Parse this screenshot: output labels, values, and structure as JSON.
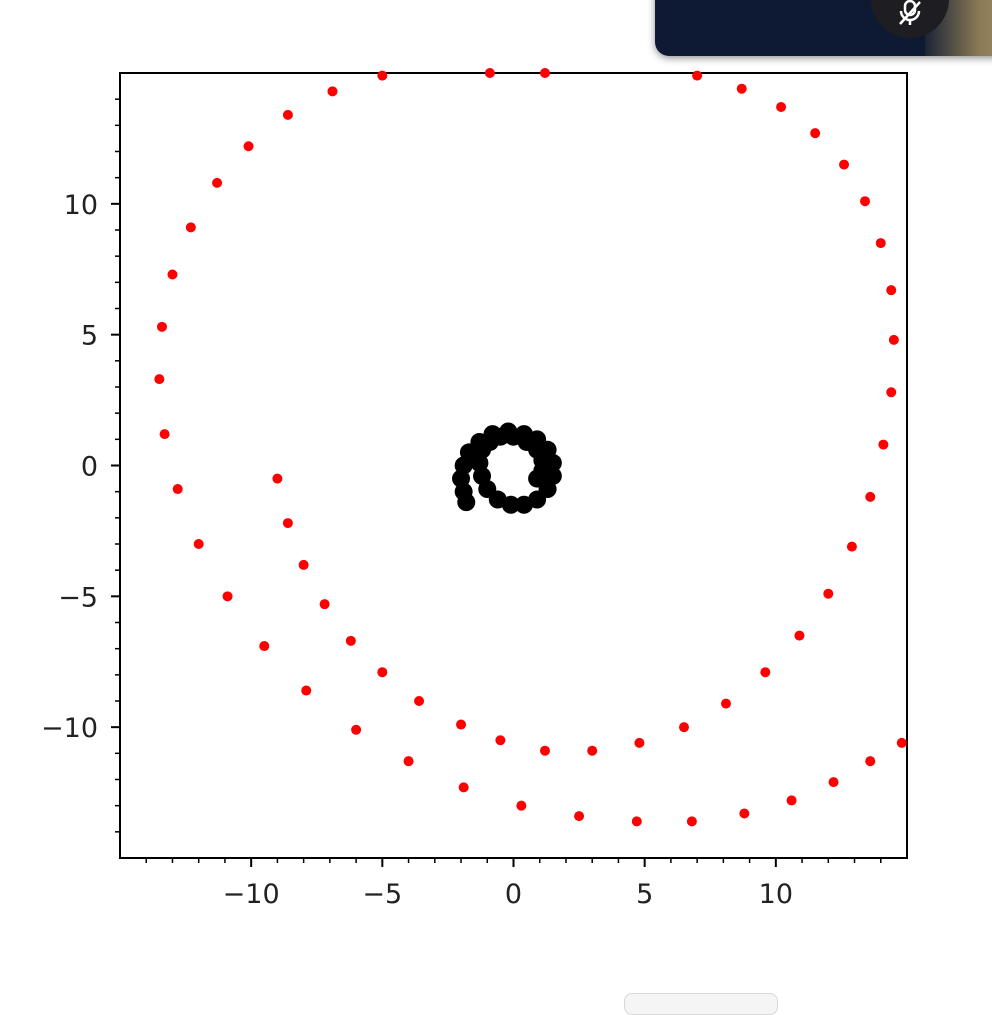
{
  "chart_data": {
    "type": "scatter",
    "title": "",
    "xlabel": "",
    "ylabel": "",
    "xlim": [
      -15,
      15
    ],
    "ylim": [
      -15,
      15
    ],
    "xticks": [
      -10,
      -5,
      0,
      5,
      10
    ],
    "yticks": [
      10,
      5,
      0,
      -5,
      -10
    ],
    "xtick_labels": [
      "−10",
      "−5",
      "0",
      "5",
      "10"
    ],
    "ytick_labels": [
      "10",
      "5",
      "0",
      "−5",
      "−10"
    ],
    "grid": false,
    "legend": "none",
    "series": [
      {
        "color": "#ff0000",
        "marker": "circle",
        "x": [
          -9.0,
          -8.6,
          -8.0,
          -7.2,
          -6.2,
          -5.0,
          -3.6,
          -2.0,
          -0.5,
          1.2,
          3.0,
          4.8,
          6.5,
          8.1,
          9.6,
          10.9,
          12.0,
          12.9,
          13.6,
          14.1,
          14.4,
          14.5,
          14.4,
          14.0,
          13.4,
          12.6,
          11.5,
          10.2,
          8.7,
          7.0,
          5.2,
          3.2,
          1.2,
          -0.9,
          -3.0,
          -5.0,
          -6.9,
          -8.6,
          -10.1,
          -11.3,
          -12.3,
          -13.0,
          -13.4,
          -13.5,
          -13.3,
          -12.8,
          -12.0,
          -10.9,
          -9.5,
          -7.9,
          -6.0,
          -4.0,
          -1.9,
          0.3,
          2.5,
          4.7,
          6.8,
          8.8,
          10.6,
          12.2,
          13.6,
          14.8
        ],
        "y": [
          -0.5,
          -2.2,
          -3.8,
          -5.3,
          -6.7,
          -7.9,
          -9.0,
          -9.9,
          -10.5,
          -10.9,
          -10.9,
          -10.6,
          -10.0,
          -9.1,
          -7.9,
          -6.5,
          -4.9,
          -3.1,
          -1.2,
          0.8,
          2.8,
          4.8,
          6.7,
          8.5,
          10.1,
          11.5,
          12.7,
          13.7,
          14.4,
          14.9,
          15.1,
          15.2,
          15.0,
          15.0,
          15.1,
          14.9,
          14.3,
          13.4,
          12.2,
          10.8,
          9.1,
          7.3,
          5.3,
          3.3,
          1.2,
          -0.9,
          -3.0,
          -5.0,
          -6.9,
          -8.6,
          -10.1,
          -11.3,
          -12.3,
          -13.0,
          -13.4,
          -13.6,
          -13.6,
          -13.3,
          -12.8,
          -12.1,
          -11.3,
          -10.6
        ]
      },
      {
        "color": "#000000",
        "marker": "circle",
        "x": [
          -1.8,
          -1.9,
          -2.0,
          -1.9,
          -1.7,
          -1.3,
          -0.8,
          -0.2,
          0.4,
          0.9,
          1.3,
          1.5,
          1.5,
          1.3,
          0.9,
          0.4,
          -0.1,
          -0.6,
          -1.0,
          -1.2,
          -1.3,
          -1.2,
          -0.9,
          -0.5,
          0.0,
          0.5,
          0.9,
          1.1,
          1.1,
          0.9
        ],
        "y": [
          -1.4,
          -1.0,
          -0.5,
          0.0,
          0.5,
          0.9,
          1.2,
          1.3,
          1.2,
          1.0,
          0.6,
          0.1,
          -0.4,
          -0.9,
          -1.3,
          -1.5,
          -1.5,
          -1.3,
          -0.9,
          -0.4,
          0.1,
          0.6,
          0.9,
          1.1,
          1.1,
          0.9,
          0.6,
          0.2,
          -0.2,
          -0.5
        ]
      }
    ]
  },
  "overlay": {
    "mute_icon": "microphone-muted-icon",
    "accent": "#0e1a33"
  }
}
